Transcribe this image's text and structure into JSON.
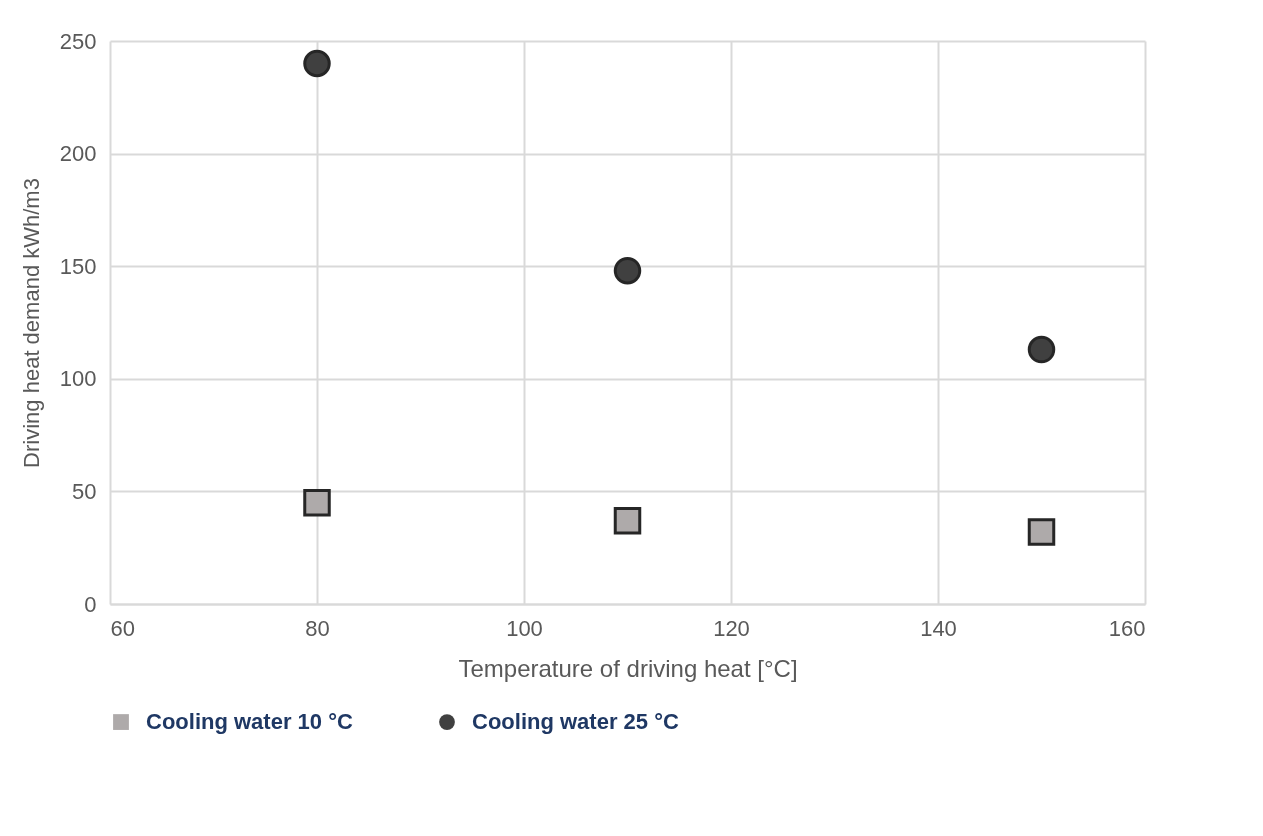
{
  "chart_data": {
    "type": "scatter",
    "xlabel": "Temperature of driving heat [°C]",
    "ylabel": "Driving heat demand kWh/m3",
    "x": [
      80,
      110,
      150
    ],
    "series": [
      {
        "name": "Cooling water 10 °C",
        "color": "#aeaaaa",
        "marker": "square",
        "values": [
          45,
          37,
          32
        ]
      },
      {
        "name": "Cooling water 25 °C",
        "color": "#404040",
        "marker": "circle",
        "values": [
          240,
          148,
          113
        ]
      }
    ],
    "xlim": [
      60,
      160
    ],
    "xticks": [
      60,
      80,
      100,
      120,
      140,
      160
    ],
    "ylim": [
      0,
      250
    ],
    "yticks": [
      0,
      50,
      100,
      150,
      200,
      250
    ],
    "grid": true,
    "legend": "bottom left"
  }
}
